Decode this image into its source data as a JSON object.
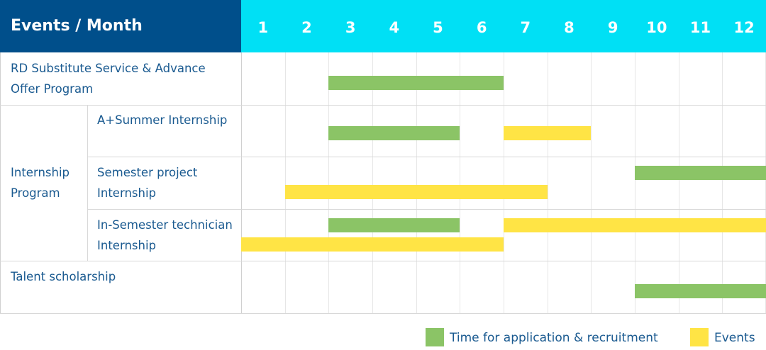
{
  "chart_data": {
    "type": "bar",
    "orientation": "horizontal-gantt",
    "title": "Events / Month",
    "categories": [
      "1",
      "2",
      "3",
      "4",
      "5",
      "6",
      "7",
      "8",
      "9",
      "10",
      "11",
      "12"
    ],
    "colors": {
      "header_left": "#004f8b",
      "header_right": "#00e0f5",
      "application": "#8bc466",
      "events": "#ffe445",
      "text": "#1a5a90"
    },
    "legend": [
      {
        "key": "application",
        "label": "Time for application & recruitment"
      },
      {
        "key": "events",
        "label": "Events"
      }
    ],
    "legend_position": "bottom-right",
    "groups": [
      {
        "label": "RD Substitute Service & Advance Offer Program",
        "rows": [
          {
            "label": "",
            "lanes": [
              [
                {
                  "start": 3,
                  "end": 6,
                  "type": "application"
                }
              ]
            ]
          }
        ]
      },
      {
        "label": "Internship Program",
        "rows": [
          {
            "label": "A+Summer Internship",
            "lanes": [
              [
                {
                  "start": 3,
                  "end": 5,
                  "type": "application"
                },
                {
                  "start": 7,
                  "end": 8,
                  "type": "events"
                }
              ]
            ]
          },
          {
            "label": "Semester project Internship",
            "lanes": [
              [
                {
                  "start": 10,
                  "end": 12,
                  "type": "application"
                }
              ],
              [
                {
                  "start": 2,
                  "end": 7,
                  "type": "events"
                }
              ]
            ]
          },
          {
            "label": "In-Semester technician Internship",
            "lanes": [
              [
                {
                  "start": 3,
                  "end": 5,
                  "type": "application"
                },
                {
                  "start": 7,
                  "end": 12,
                  "type": "events"
                }
              ],
              [
                {
                  "start": 1,
                  "end": 6,
                  "type": "events"
                }
              ]
            ]
          }
        ]
      },
      {
        "label": "Talent scholarship",
        "rows": [
          {
            "label": "",
            "lanes": [
              [
                {
                  "start": 10,
                  "end": 12,
                  "type": "application"
                }
              ]
            ]
          }
        ]
      }
    ]
  }
}
